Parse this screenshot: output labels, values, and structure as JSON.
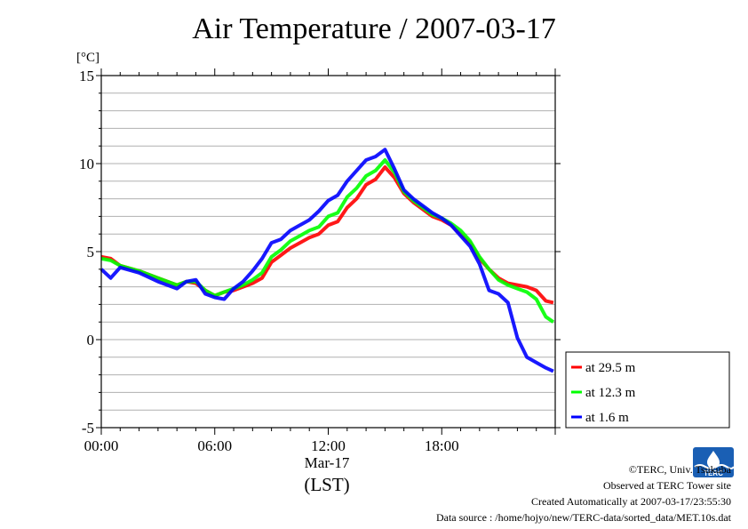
{
  "chart_data": {
    "type": "line",
    "title": "Air Temperature / 2007-03-17",
    "yunit": "[°C]",
    "ylim": [
      -5,
      15
    ],
    "yticks": [
      -5,
      0,
      5,
      10,
      15
    ],
    "xlim": [
      0,
      24
    ],
    "xticks": [
      {
        "value": 0,
        "label": "00:00"
      },
      {
        "value": 6,
        "label": "06:00"
      },
      {
        "value": 12,
        "label": "12:00"
      },
      {
        "value": 18,
        "label": "18:00"
      }
    ],
    "xdate": "Mar-17",
    "xlabel": "(LST)",
    "grid": true,
    "legend_position": "right-outside-bottom",
    "series": [
      {
        "name": "at 29.5 m",
        "color": "#ff0000",
        "x": [
          0,
          0.5,
          1,
          2,
          3,
          4,
          4.5,
          5,
          5.5,
          6,
          6.5,
          7,
          7.5,
          8,
          8.5,
          9,
          9.5,
          10,
          10.5,
          11,
          11.5,
          12,
          12.5,
          13,
          13.5,
          14,
          14.5,
          15,
          15.5,
          16,
          16.5,
          17,
          17.5,
          18,
          18.5,
          19,
          19.5,
          20,
          20.5,
          21,
          21.5,
          22,
          22.5,
          23,
          23.5,
          23.9
        ],
        "y": [
          4.7,
          4.6,
          4.2,
          3.9,
          3.5,
          3.1,
          3.3,
          3.2,
          2.8,
          2.5,
          2.7,
          2.8,
          3.0,
          3.2,
          3.5,
          4.4,
          4.8,
          5.2,
          5.5,
          5.8,
          6.0,
          6.5,
          6.7,
          7.5,
          8.0,
          8.8,
          9.1,
          9.8,
          9.2,
          8.3,
          7.8,
          7.4,
          7.0,
          6.8,
          6.5,
          6.0,
          5.5,
          4.6,
          4.0,
          3.5,
          3.2,
          3.1,
          3.0,
          2.8,
          2.2,
          2.1
        ]
      },
      {
        "name": "at 12.3 m",
        "color": "#00ff00",
        "x": [
          0,
          0.5,
          1,
          2,
          3,
          4,
          4.5,
          5,
          5.5,
          6,
          6.5,
          7,
          7.5,
          8,
          8.5,
          9,
          9.5,
          10,
          10.5,
          11,
          11.5,
          12,
          12.5,
          13,
          13.5,
          14,
          14.5,
          15,
          15.5,
          16,
          16.5,
          17,
          17.5,
          18,
          18.5,
          19,
          19.5,
          20,
          20.5,
          21,
          21.5,
          22,
          22.5,
          23,
          23.5,
          23.9
        ],
        "y": [
          4.6,
          4.5,
          4.2,
          3.9,
          3.5,
          3.1,
          3.3,
          3.3,
          2.8,
          2.5,
          2.7,
          2.9,
          3.1,
          3.4,
          3.8,
          4.7,
          5.1,
          5.6,
          5.9,
          6.2,
          6.4,
          7.0,
          7.2,
          8.1,
          8.6,
          9.3,
          9.6,
          10.2,
          9.5,
          8.4,
          7.9,
          7.5,
          7.1,
          6.9,
          6.6,
          6.2,
          5.6,
          4.7,
          4.0,
          3.4,
          3.1,
          2.9,
          2.7,
          2.3,
          1.3,
          1.0
        ]
      },
      {
        "name": "at 1.6 m",
        "color": "#0000ff",
        "x": [
          0,
          0.5,
          1,
          2,
          3,
          4,
          4.5,
          5,
          5.5,
          6,
          6.5,
          7,
          7.5,
          8,
          8.5,
          9,
          9.5,
          10,
          10.5,
          11,
          11.5,
          12,
          12.5,
          13,
          13.5,
          14,
          14.5,
          15,
          15.5,
          16,
          16.5,
          17,
          17.5,
          18,
          18.5,
          19,
          19.5,
          20,
          20.5,
          21,
          21.5,
          22,
          22.5,
          23,
          23.5,
          23.9
        ],
        "y": [
          4.0,
          3.5,
          4.1,
          3.8,
          3.3,
          2.9,
          3.3,
          3.4,
          2.6,
          2.4,
          2.3,
          2.9,
          3.3,
          3.9,
          4.6,
          5.5,
          5.7,
          6.2,
          6.5,
          6.8,
          7.3,
          7.9,
          8.2,
          9.0,
          9.6,
          10.2,
          10.4,
          10.8,
          9.7,
          8.5,
          8.0,
          7.6,
          7.2,
          6.9,
          6.5,
          5.9,
          5.3,
          4.3,
          2.8,
          2.6,
          2.1,
          0.1,
          -1.0,
          -1.3,
          -1.6,
          -1.8
        ]
      }
    ]
  },
  "footer": {
    "copyright": "©TERC, Univ. Tsukuba",
    "observed": "Observed at TERC Tower site",
    "created": "Created Automatically at 2007-03-17/23:55:30",
    "source": "Data source : /home/hojyo/new/TERC-data/sorted_data/MET.10s.dat"
  },
  "logo": {
    "text": "TERC",
    "color": "#1a5fb4"
  }
}
